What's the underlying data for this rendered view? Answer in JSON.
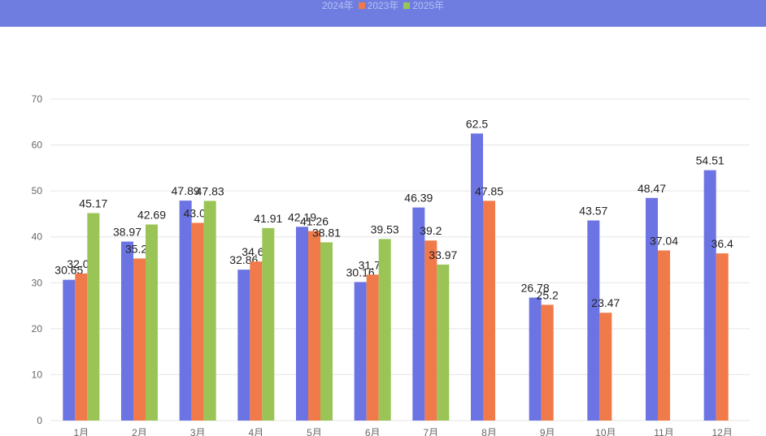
{
  "chart_data": {
    "type": "bar",
    "title": "",
    "xlabel": "",
    "ylabel": "",
    "ylim": [
      0,
      70
    ],
    "yticks": [
      0,
      10,
      20,
      30,
      40,
      50,
      60,
      70
    ],
    "grid": true,
    "legend_placement": "top-center",
    "categories": [
      "1月",
      "2月",
      "3月",
      "4月",
      "5月",
      "6月",
      "7月",
      "8月",
      "9月",
      "10月",
      "11月",
      "12月"
    ],
    "series": [
      {
        "name": "2024年",
        "color": "#6b74e2",
        "values": [
          30.65,
          38.97,
          47.89,
          32.86,
          42.19,
          30.16,
          46.39,
          62.5,
          26.78,
          43.57,
          48.47,
          54.51
        ]
      },
      {
        "name": "2023年",
        "color": "#f07a4a",
        "values": [
          32.03,
          35.29,
          43.05,
          34.62,
          41.26,
          31.77,
          39.2,
          47.85,
          25.2,
          23.47,
          37.04,
          36.4
        ]
      },
      {
        "name": "2025年",
        "color": "#9ac556",
        "values": [
          45.17,
          42.69,
          47.83,
          41.91,
          38.81,
          39.53,
          33.97,
          null,
          null,
          null,
          null,
          null
        ]
      }
    ]
  },
  "colors": {
    "banner": "#6f7de0",
    "grid": "#e6e6e6",
    "axis_text": "#666666",
    "label_text": "#222222"
  }
}
